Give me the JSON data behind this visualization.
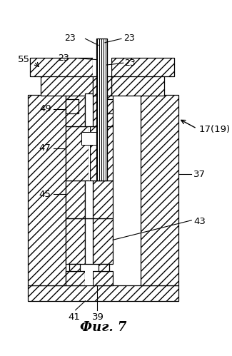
{
  "title": "Фиг. 7",
  "bg_color": "#ffffff",
  "line_color": "#000000",
  "fig_width": 3.25,
  "fig_height": 4.99,
  "dpi": 100
}
